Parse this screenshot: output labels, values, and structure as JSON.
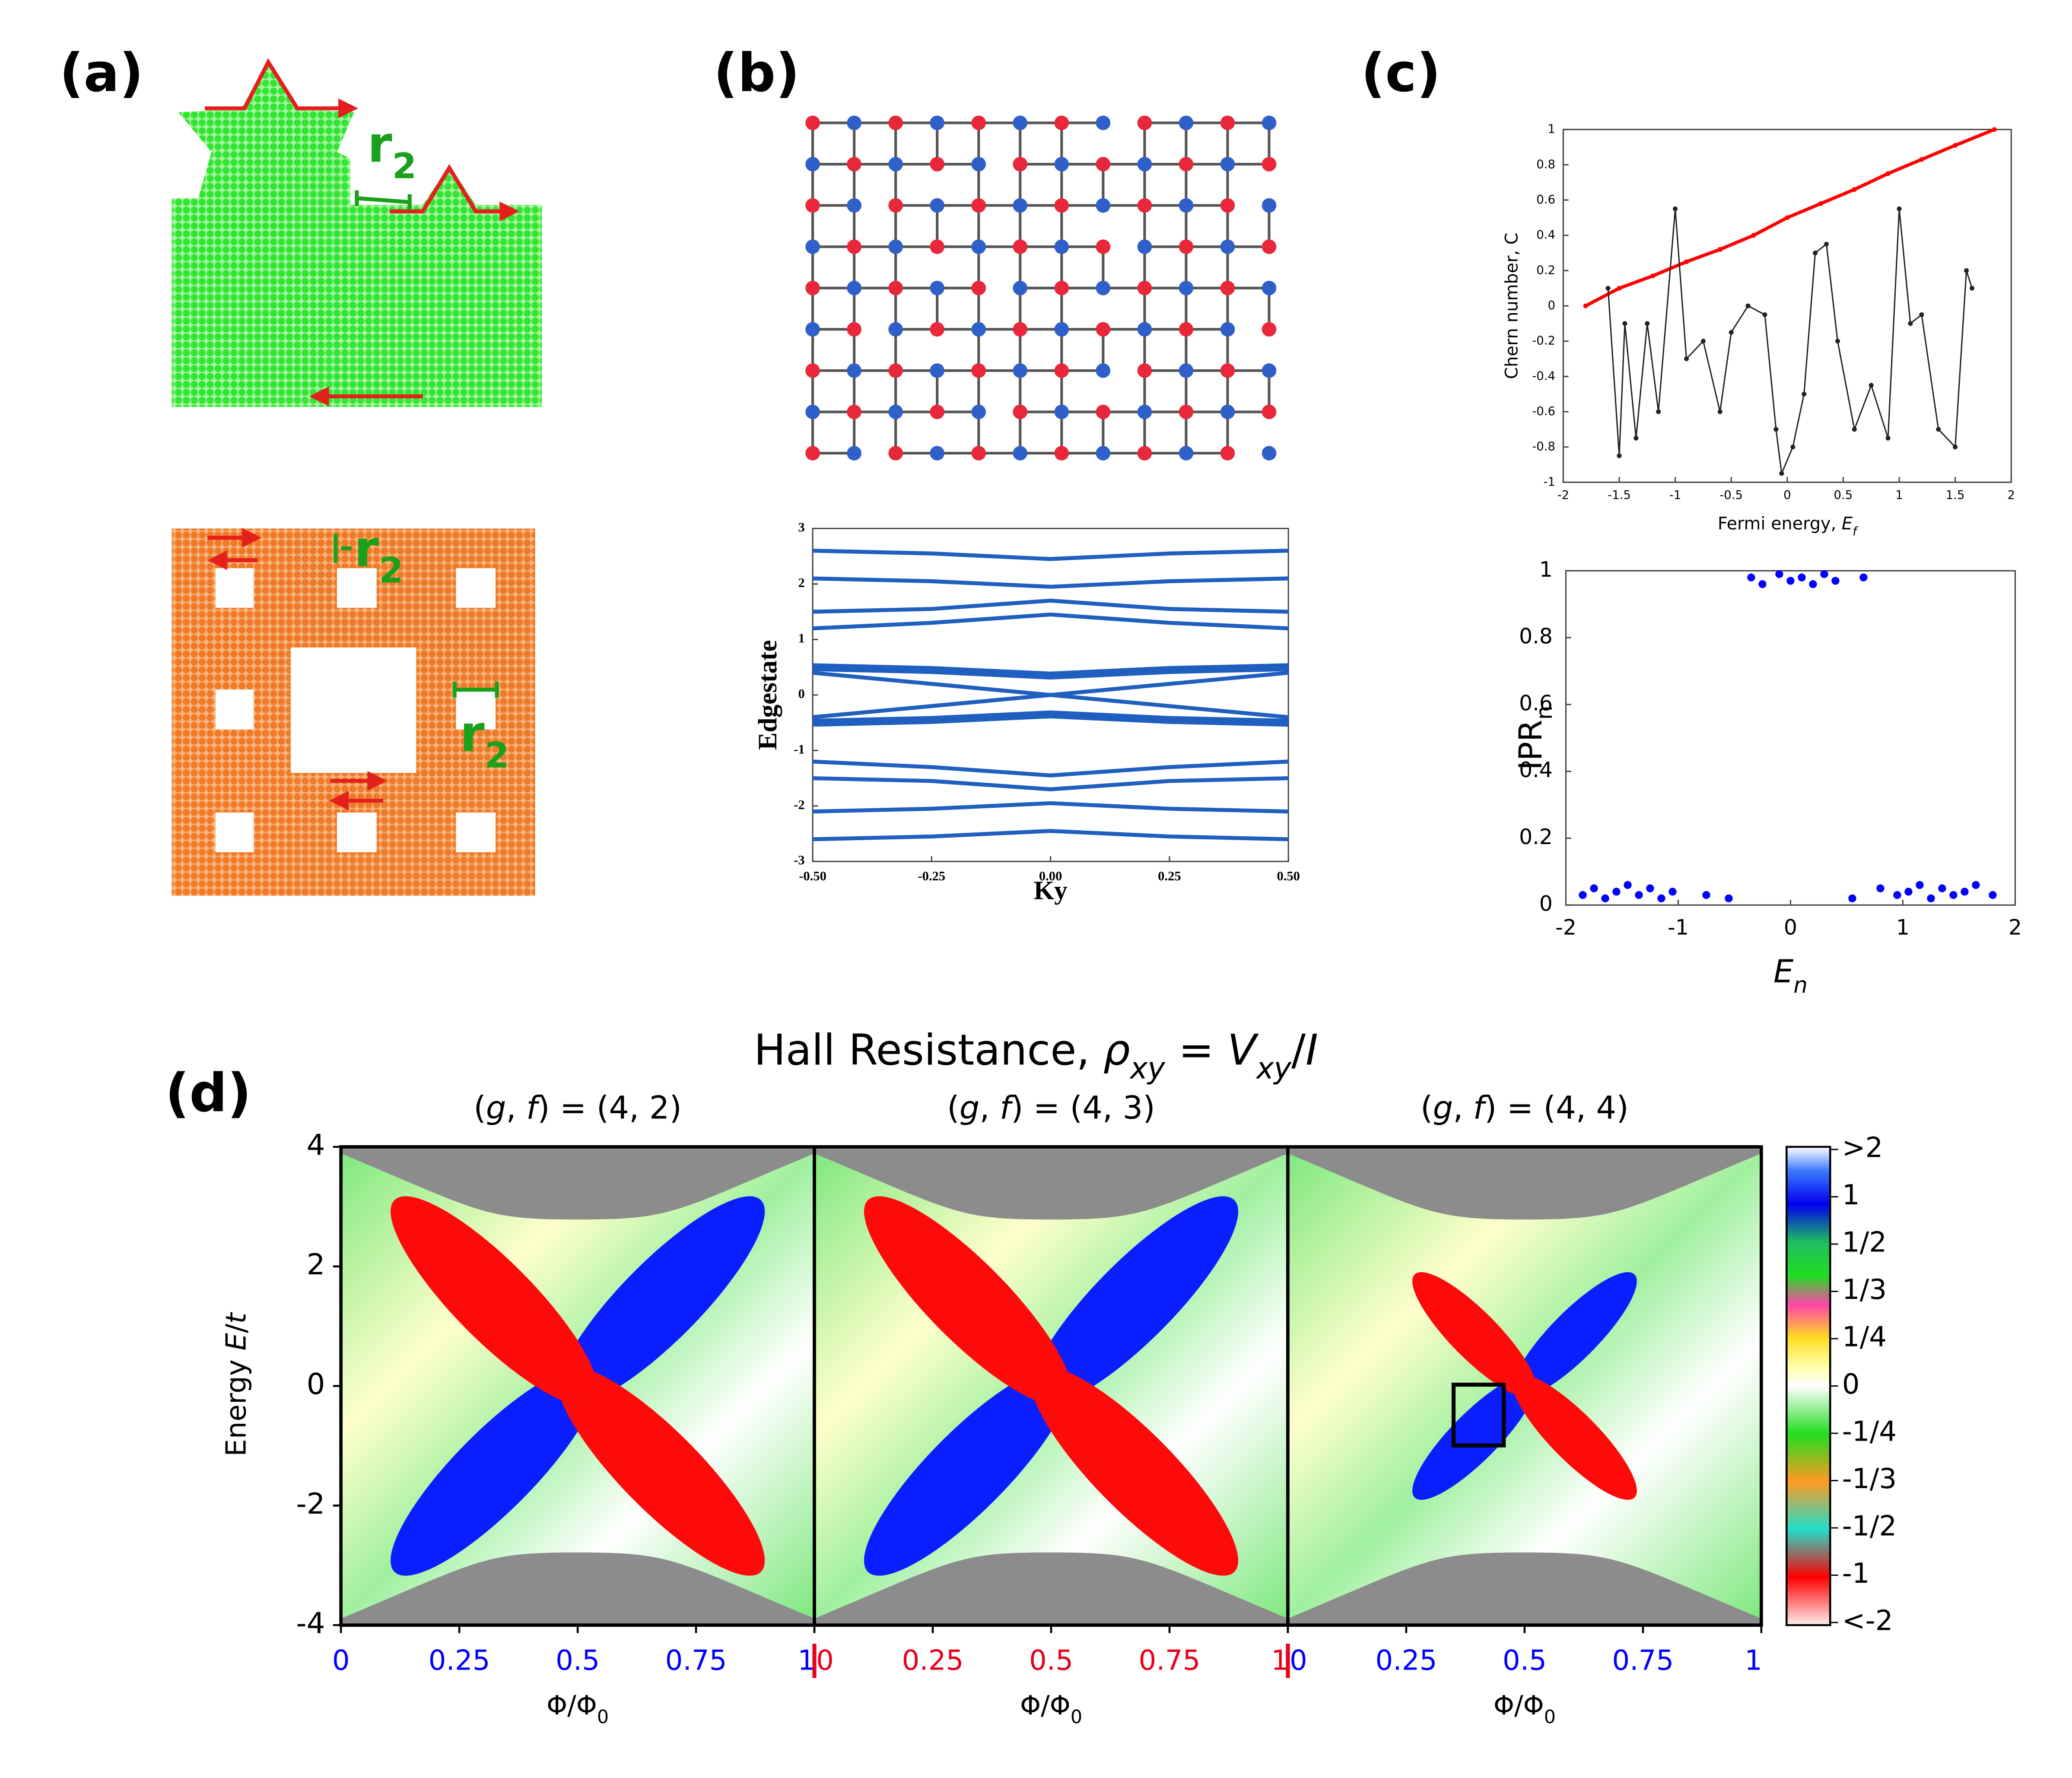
{
  "panel_labels": [
    "(a)",
    "(b)",
    "(c)",
    "(d)"
  ],
  "panel_a": {
    "annotations": [
      [
        {
          "text": "r"
        },
        {
          "text": "2",
          "style": "sub"
        }
      ],
      [
        {
          "text": "r"
        },
        {
          "text": "2",
          "style": "sub"
        }
      ],
      [
        {
          "text": "r"
        },
        {
          "text": "2",
          "style": "sub"
        }
      ]
    ]
  },
  "chart_data": [
    {
      "type": "line",
      "ylabel": "Edgestate",
      "xlabel": "Ky",
      "x": [
        -0.5,
        -0.25,
        0,
        0.25,
        0.5
      ],
      "xlim": [
        -0.5,
        0.5
      ],
      "xticks": [
        {
          "value": -0.5,
          "label": "-0.50"
        },
        {
          "value": -0.25,
          "label": "-0.25"
        },
        {
          "value": 0,
          "label": "0.00"
        },
        {
          "value": 0.25,
          "label": "0.25"
        },
        {
          "value": 0.5,
          "label": "0.50"
        }
      ],
      "ylim": [
        -3,
        3
      ],
      "yticks": [
        -3,
        -2,
        -1,
        0,
        1,
        2,
        3
      ],
      "series": [
        {
          "color": "#1f5fbf",
          "values": [
            2.6,
            2.55,
            2.45,
            2.55,
            2.6
          ]
        },
        {
          "color": "#1f5fbf",
          "values": [
            2.1,
            2.05,
            1.95,
            2.05,
            2.1
          ]
        },
        {
          "color": "#1f5fbf",
          "values": [
            1.5,
            1.55,
            1.7,
            1.55,
            1.5
          ]
        },
        {
          "color": "#1f5fbf",
          "values": [
            1.2,
            1.3,
            1.45,
            1.3,
            1.2
          ]
        },
        {
          "color": "#1f5fbf",
          "values": [
            0.5,
            0.45,
            0.35,
            0.45,
            0.5
          ]
        },
        {
          "color": "#1f5fbf",
          "values": [
            0.4,
            0.2,
            0,
            -0.2,
            -0.4
          ]
        },
        {
          "color": "#1f5fbf",
          "values": [
            -0.4,
            -0.2,
            0,
            0.2,
            0.4
          ]
        },
        {
          "color": "#1f5fbf",
          "values": [
            -0.5,
            -0.45,
            -0.35,
            -0.45,
            -0.5
          ]
        },
        {
          "color": "#1f5fbf",
          "values": [
            -1.2,
            -1.3,
            -1.45,
            -1.3,
            -1.2
          ]
        },
        {
          "color": "#1f5fbf",
          "values": [
            -1.5,
            -1.55,
            -1.7,
            -1.55,
            -1.5
          ]
        },
        {
          "color": "#1f5fbf",
          "values": [
            -2.1,
            -2.05,
            -1.95,
            -2.05,
            -2.1
          ]
        },
        {
          "color": "#1f5fbf",
          "values": [
            -2.6,
            -2.55,
            -2.45,
            -2.55,
            -2.6
          ]
        }
      ]
    },
    {
      "type": "line",
      "ylabel": "Chern number, C",
      "xlabel": [
        {
          "text": "Fermi energy, "
        },
        {
          "text": "E",
          "style": "italic"
        },
        {
          "text": "f",
          "style": "sub-italic"
        }
      ],
      "xlim": [
        -2,
        2
      ],
      "xticks": [
        -2,
        -1.5,
        -1,
        -0.5,
        0,
        0.5,
        1,
        1.5,
        2
      ],
      "ylim": [
        -1,
        1
      ],
      "yticks": [
        -1,
        -0.8,
        -0.6,
        -0.4,
        -0.2,
        0,
        0.2,
        0.4,
        0.6,
        0.8,
        1
      ],
      "series": [
        {
          "color": "#ff0000",
          "x": [
            -1.8,
            -1.5,
            -1.2,
            -0.9,
            -0.6,
            -0.3,
            0,
            0.3,
            0.6,
            0.9,
            1.2,
            1.5,
            1.85
          ],
          "values": [
            0.0,
            0.1,
            0.17,
            0.25,
            0.32,
            0.4,
            0.5,
            0.58,
            0.66,
            0.75,
            0.83,
            0.91,
            1.0
          ]
        },
        {
          "color": "#222222",
          "x": [
            -1.6,
            -1.5,
            -1.45,
            -1.35,
            -1.25,
            -1.15,
            -1.0,
            -0.9,
            -0.75,
            -0.6,
            -0.5,
            -0.35,
            -0.2,
            -0.1,
            -0.05,
            0.05,
            0.15,
            0.25,
            0.35,
            0.45,
            0.6,
            0.75,
            0.9,
            1.0,
            1.1,
            1.2,
            1.35,
            1.5,
            1.6,
            1.65
          ],
          "values": [
            0.1,
            -0.85,
            -0.1,
            -0.75,
            -0.1,
            -0.6,
            0.55,
            -0.3,
            -0.2,
            -0.6,
            -0.15,
            0.0,
            -0.05,
            -0.7,
            -0.95,
            -0.8,
            -0.5,
            0.3,
            0.35,
            -0.2,
            -0.7,
            -0.45,
            -0.75,
            0.55,
            -0.1,
            -0.05,
            -0.7,
            -0.8,
            0.2,
            0.1
          ]
        }
      ]
    },
    {
      "type": "scatter",
      "ylabel": [
        {
          "text": "IPR"
        },
        {
          "text": "n",
          "style": "sub"
        }
      ],
      "xlabel": [
        {
          "text": "E",
          "style": "italic"
        },
        {
          "text": "n",
          "style": "sub-italic"
        }
      ],
      "xlim": [
        -2,
        2
      ],
      "xticks": [
        -2,
        -1,
        0,
        1,
        2
      ],
      "ylim": [
        0,
        1
      ],
      "yticks": [
        0,
        0.2,
        0.4,
        0.6,
        0.8,
        1
      ],
      "color": "#0000ff",
      "x": [
        -1.85,
        -1.75,
        -1.65,
        -1.55,
        -1.45,
        -1.35,
        -1.25,
        -1.15,
        -1.05,
        -0.75,
        -0.55,
        0.55,
        0.8,
        0.95,
        1.05,
        1.15,
        1.25,
        1.35,
        1.45,
        1.55,
        1.65,
        1.8,
        -0.35,
        -0.25,
        -0.1,
        0.0,
        0.1,
        0.2,
        0.3,
        0.4,
        0.65
      ],
      "values": [
        0.03,
        0.05,
        0.02,
        0.04,
        0.06,
        0.03,
        0.05,
        0.02,
        0.04,
        0.03,
        0.02,
        0.02,
        0.05,
        0.03,
        0.04,
        0.06,
        0.02,
        0.05,
        0.03,
        0.04,
        0.06,
        0.03,
        0.98,
        0.96,
        0.99,
        0.97,
        0.98,
        0.96,
        0.99,
        0.97,
        0.98
      ]
    },
    {
      "type": "heatmap",
      "title": [
        {
          "text": "Hall Resistance, "
        },
        {
          "text": "ρ",
          "style": "italic"
        },
        {
          "text": "xy",
          "style": "sub-italic"
        },
        {
          "text": " = "
        },
        {
          "text": "V",
          "style": "italic"
        },
        {
          "text": "xy",
          "style": "sub-italic"
        },
        {
          "text": "/"
        },
        {
          "text": "I",
          "style": "italic"
        }
      ],
      "ylabel": [
        {
          "text": "Energy "
        },
        {
          "text": "E",
          "style": "italic"
        },
        {
          "text": "/"
        },
        {
          "text": "t",
          "style": "italic"
        }
      ],
      "ylim": [
        -4,
        4
      ],
      "yticks": [
        -4,
        -2,
        0,
        2,
        4
      ],
      "xlim": [
        0,
        1
      ],
      "panels": [
        {
          "title": [
            {
              "text": "("
            },
            {
              "text": "g",
              "style": "italic"
            },
            {
              "text": ", "
            },
            {
              "text": "f",
              "style": "italic"
            },
            {
              "text": ") = (4, 2)"
            }
          ],
          "xticks": [
            0,
            0.25,
            0.5,
            0.75,
            1
          ],
          "tick_color": "#0000ff",
          "xlabel": [
            {
              "text": "Φ/Φ"
            },
            {
              "text": "0",
              "style": "sub"
            }
          ]
        },
        {
          "title": [
            {
              "text": "("
            },
            {
              "text": "g",
              "style": "italic"
            },
            {
              "text": ", "
            },
            {
              "text": "f",
              "style": "italic"
            },
            {
              "text": ") = (4, 3)"
            }
          ],
          "xticks": [
            0,
            0.25,
            0.5,
            0.75,
            1
          ],
          "tick_color": "#e8001c",
          "xlabel": [
            {
              "text": "Φ/Φ"
            },
            {
              "text": "0",
              "style": "sub"
            }
          ]
        },
        {
          "title": [
            {
              "text": "("
            },
            {
              "text": "g",
              "style": "italic"
            },
            {
              "text": ", "
            },
            {
              "text": "f",
              "style": "italic"
            },
            {
              "text": ") = (4, 4)"
            }
          ],
          "xticks": [
            0,
            0.25,
            0.5,
            0.75,
            1
          ],
          "tick_color": "#0000ff",
          "xlabel": [
            {
              "text": "Φ/Φ"
            },
            {
              "text": "0",
              "style": "sub"
            }
          ]
        }
      ],
      "colorbar_labels": [
        ">2",
        "1",
        "1/2",
        "1/3",
        "1/4",
        "0",
        "-1/4",
        "-1/3",
        "-1/2",
        "-1",
        "<-2"
      ]
    }
  ]
}
